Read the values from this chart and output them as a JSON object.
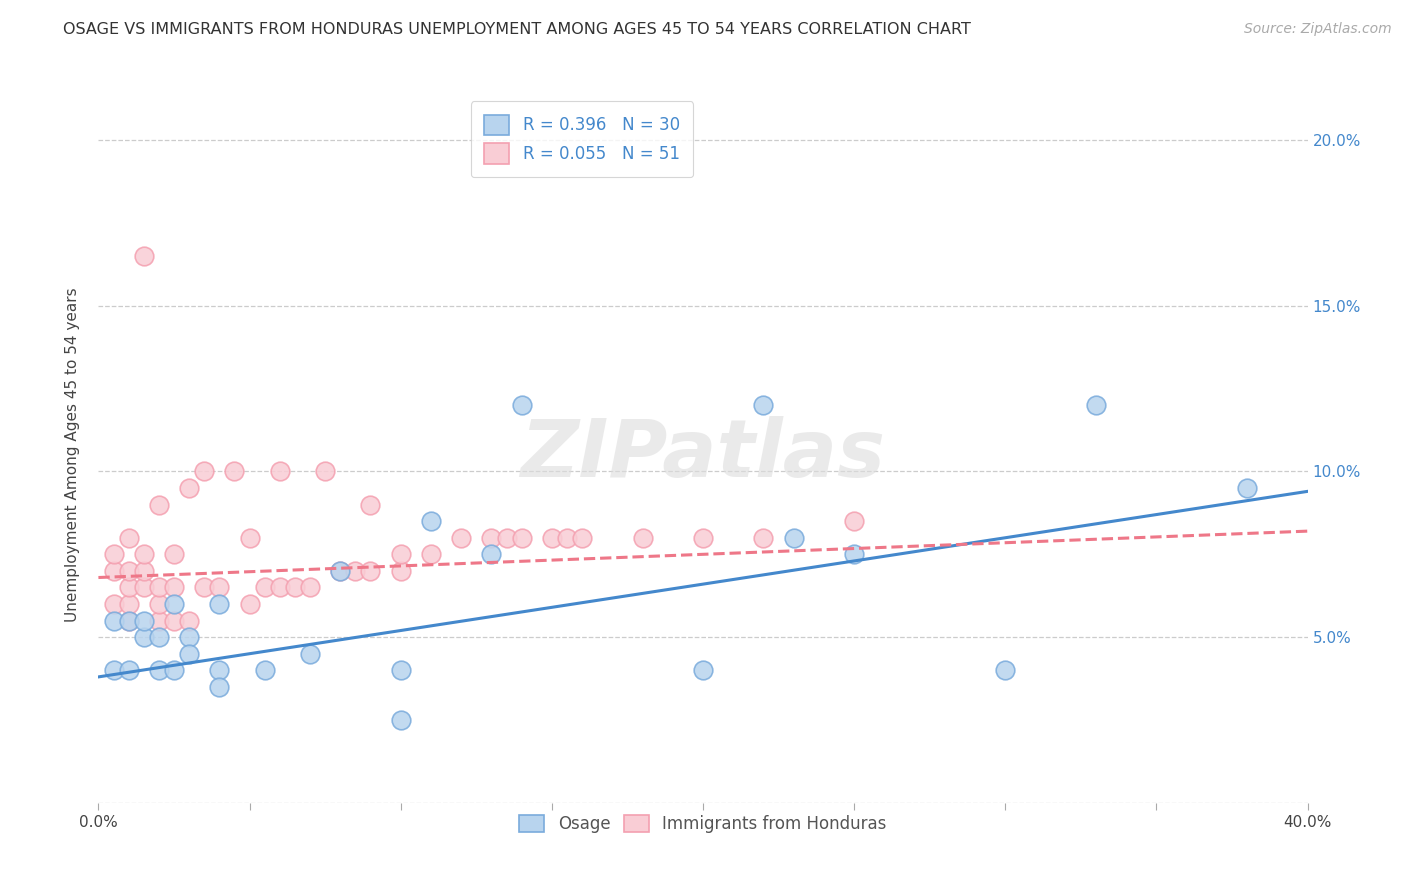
{
  "title": "OSAGE VS IMMIGRANTS FROM HONDURAS UNEMPLOYMENT AMONG AGES 45 TO 54 YEARS CORRELATION CHART",
  "source": "Source: ZipAtlas.com",
  "ylabel": "Unemployment Among Ages 45 to 54 years",
  "xlabel": "",
  "xlim": [
    0.0,
    0.4
  ],
  "ylim": [
    0.0,
    0.21
  ],
  "xticks": [
    0.0,
    0.05,
    0.1,
    0.15,
    0.2,
    0.25,
    0.3,
    0.35,
    0.4
  ],
  "xtick_labels_show": [
    "0.0%",
    "",
    "",
    "",
    "",
    "",
    "",
    "",
    "40.0%"
  ],
  "ytick_labels": [
    "",
    "5.0%",
    "10.0%",
    "15.0%",
    "20.0%"
  ],
  "yticks": [
    0.0,
    0.05,
    0.1,
    0.15,
    0.2
  ],
  "right_ytick_labels": [
    "",
    "5.0%",
    "10.0%",
    "15.0%",
    "20.0%"
  ],
  "grid_color": "#cccccc",
  "background_color": "#ffffff",
  "osage_color": "#7aabdc",
  "osage_color_fill": "#b8d4ee",
  "honduras_color": "#f4a0b0",
  "honduras_color_fill": "#f9cdd5",
  "trend_blue": "#4488cc",
  "trend_pink": "#ee7788",
  "R_osage": 0.396,
  "N_osage": 30,
  "R_honduras": 0.055,
  "N_honduras": 51,
  "osage_x": [
    0.005,
    0.005,
    0.01,
    0.01,
    0.015,
    0.015,
    0.02,
    0.02,
    0.025,
    0.025,
    0.03,
    0.03,
    0.04,
    0.04,
    0.04,
    0.055,
    0.07,
    0.08,
    0.1,
    0.1,
    0.11,
    0.13,
    0.14,
    0.2,
    0.22,
    0.23,
    0.25,
    0.3,
    0.33,
    0.38
  ],
  "osage_y": [
    0.055,
    0.04,
    0.055,
    0.04,
    0.05,
    0.055,
    0.04,
    0.05,
    0.06,
    0.04,
    0.05,
    0.045,
    0.06,
    0.04,
    0.035,
    0.04,
    0.045,
    0.07,
    0.04,
    0.025,
    0.085,
    0.075,
    0.12,
    0.04,
    0.12,
    0.08,
    0.075,
    0.04,
    0.12,
    0.095
  ],
  "honduras_x": [
    0.005,
    0.005,
    0.005,
    0.01,
    0.01,
    0.01,
    0.01,
    0.01,
    0.015,
    0.015,
    0.015,
    0.015,
    0.02,
    0.02,
    0.02,
    0.02,
    0.025,
    0.025,
    0.025,
    0.03,
    0.03,
    0.035,
    0.035,
    0.04,
    0.045,
    0.05,
    0.05,
    0.055,
    0.06,
    0.06,
    0.065,
    0.07,
    0.075,
    0.08,
    0.085,
    0.09,
    0.09,
    0.1,
    0.1,
    0.11,
    0.12,
    0.13,
    0.135,
    0.14,
    0.15,
    0.155,
    0.16,
    0.18,
    0.2,
    0.22,
    0.25
  ],
  "honduras_y": [
    0.06,
    0.07,
    0.075,
    0.055,
    0.06,
    0.065,
    0.07,
    0.08,
    0.065,
    0.07,
    0.075,
    0.165,
    0.055,
    0.06,
    0.065,
    0.09,
    0.055,
    0.065,
    0.075,
    0.055,
    0.095,
    0.065,
    0.1,
    0.065,
    0.1,
    0.06,
    0.08,
    0.065,
    0.065,
    0.1,
    0.065,
    0.065,
    0.1,
    0.07,
    0.07,
    0.07,
    0.09,
    0.07,
    0.075,
    0.075,
    0.08,
    0.08,
    0.08,
    0.08,
    0.08,
    0.08,
    0.08,
    0.08,
    0.08,
    0.08,
    0.085
  ],
  "osage_trend_x": [
    0.0,
    0.4
  ],
  "osage_trend_y": [
    0.038,
    0.094
  ],
  "honduras_trend_x": [
    0.0,
    0.4
  ],
  "honduras_trend_y": [
    0.068,
    0.082
  ],
  "watermark": "ZIPatlas",
  "title_fontsize": 11.5,
  "label_fontsize": 11,
  "tick_fontsize": 11,
  "source_fontsize": 10,
  "legend_fontsize": 12
}
